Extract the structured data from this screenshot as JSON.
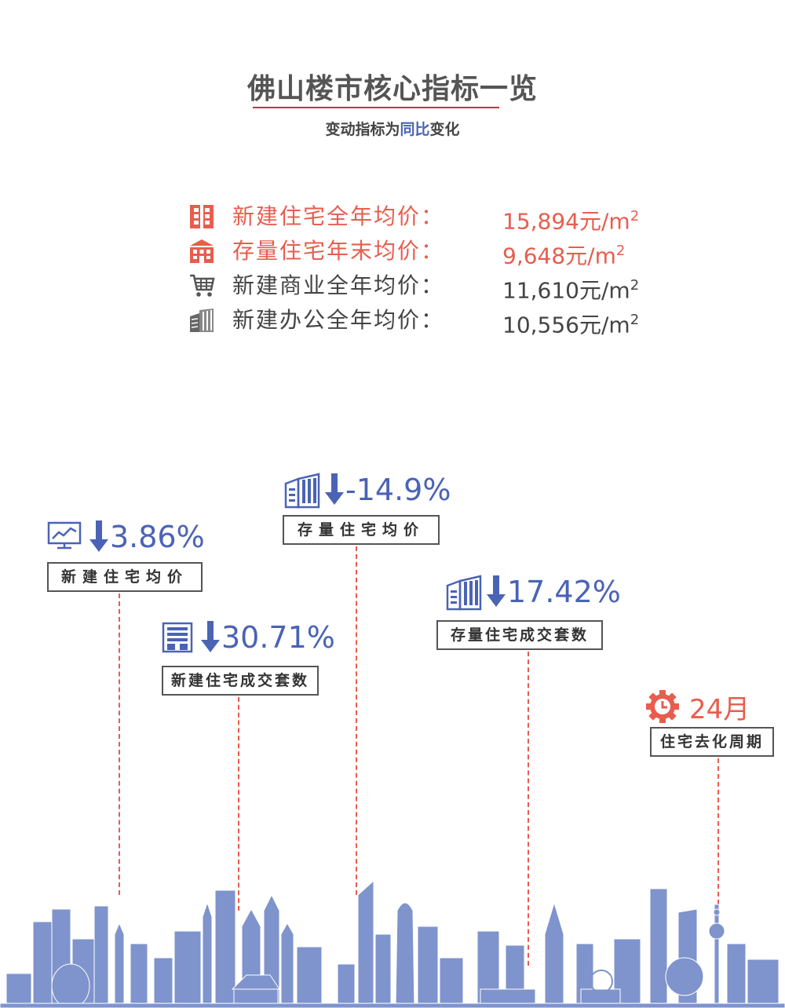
{
  "header": {
    "title": "佛山楼市核心指标一览",
    "subtitle_before": "变动指标为",
    "subtitle_highlight": "同比",
    "subtitle_after": "变化"
  },
  "colors": {
    "accent_red": "#e85d4e",
    "accent_blue": "#4a63b5",
    "text_gray": "#444444",
    "divider_red": "#c0392b"
  },
  "prices": [
    {
      "icon": "building-icon",
      "label": "新建住宅全年均价：",
      "value": "15,894元/m",
      "sup": "2"
    },
    {
      "icon": "house-icon",
      "label": "存量住宅年末均价：",
      "value": "9,648元/m",
      "sup": "2"
    },
    {
      "icon": "shopping-cart-icon",
      "label": "新建商业全年均价：",
      "value": "11,610元/m",
      "sup": "2"
    },
    {
      "icon": "office-building-icon",
      "label": "新建办公全年均价：",
      "value": "10,556元/m",
      "sup": "2"
    }
  ],
  "indicators": {
    "new_home_price": {
      "value": "3.86%",
      "label": "新建住宅均价",
      "icon": "chart-monitor-icon",
      "direction": "down"
    },
    "new_home_deals": {
      "value": "30.71%",
      "label": "新建住宅成交套数",
      "icon": "apartment-icon",
      "direction": "down"
    },
    "resale_price": {
      "value": "-14.9%",
      "label": "存量住宅均价",
      "icon": "buildings-icon",
      "direction": "down"
    },
    "resale_deals": {
      "value": "17.42%",
      "label": "存量住宅成交套数",
      "icon": "buildings-icon",
      "direction": "down"
    },
    "destock_cycle": {
      "value": "24月",
      "label": "住宅去化周期",
      "icon": "gear-clock-icon"
    }
  }
}
